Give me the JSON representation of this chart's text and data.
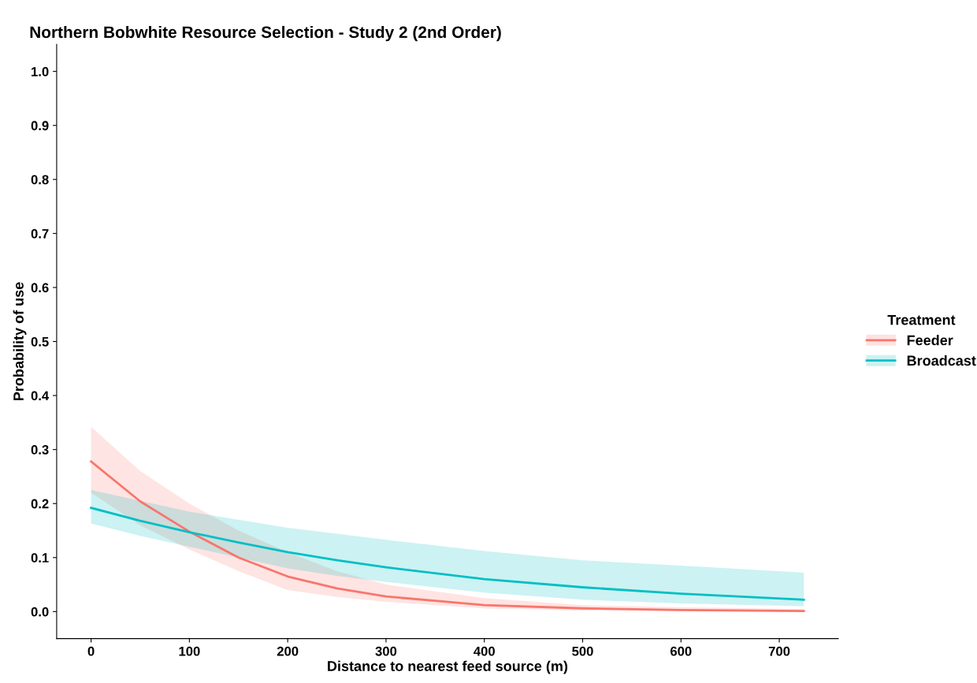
{
  "chart_data": {
    "type": "line",
    "title": "Northern Bobwhite Resource Selection - Study 2 (2nd Order)",
    "xlabel": "Distance to nearest feed source (m)",
    "ylabel": "Probability of use",
    "legend_title": "Treatment",
    "legend": "right",
    "grid": false,
    "marker": "none",
    "line_style": "solid",
    "x": [
      0,
      50,
      100,
      150,
      200,
      250,
      300,
      400,
      500,
      600,
      725
    ],
    "series": [
      {
        "name": "Feeder",
        "color": "#f8766d",
        "values": [
          0.278,
          0.204,
          0.148,
          0.1,
          0.065,
          0.043,
          0.028,
          0.012,
          0.006,
          0.003,
          0.001
        ],
        "lower": [
          0.22,
          0.16,
          0.115,
          0.075,
          0.04,
          0.027,
          0.018,
          0.006,
          0.002,
          0.001,
          0.0
        ],
        "upper": [
          0.342,
          0.26,
          0.2,
          0.15,
          0.11,
          0.075,
          0.05,
          0.025,
          0.012,
          0.008,
          0.005
        ]
      },
      {
        "name": "Broadcast",
        "color": "#00bfc4",
        "values": [
          0.192,
          0.168,
          0.147,
          0.128,
          0.11,
          0.095,
          0.082,
          0.06,
          0.045,
          0.033,
          0.022
        ],
        "lower": [
          0.163,
          0.14,
          0.12,
          0.1,
          0.08,
          0.066,
          0.055,
          0.035,
          0.022,
          0.015,
          0.01
        ],
        "upper": [
          0.225,
          0.205,
          0.185,
          0.17,
          0.155,
          0.144,
          0.133,
          0.112,
          0.095,
          0.085,
          0.072
        ]
      }
    ],
    "xlim": [
      -35,
      760
    ],
    "xticks": [
      0,
      100,
      200,
      300,
      400,
      500,
      600,
      700
    ],
    "ylim": [
      -0.05,
      1.05
    ],
    "yticks": [
      {
        "value": 0,
        "label": "0.0"
      },
      {
        "value": 0.1,
        "label": "0.1"
      },
      {
        "value": 0.2,
        "label": "0.2"
      },
      {
        "value": 0.3,
        "label": "0.3"
      },
      {
        "value": 0.4,
        "label": "0.4"
      },
      {
        "value": 0.5,
        "label": "0.5"
      },
      {
        "value": 0.6,
        "label": "0.6"
      },
      {
        "value": 0.7,
        "label": "0.7"
      },
      {
        "value": 0.8,
        "label": "0.8"
      },
      {
        "value": 0.9,
        "label": "0.9"
      },
      {
        "value": 1,
        "label": "1.0"
      }
    ]
  }
}
